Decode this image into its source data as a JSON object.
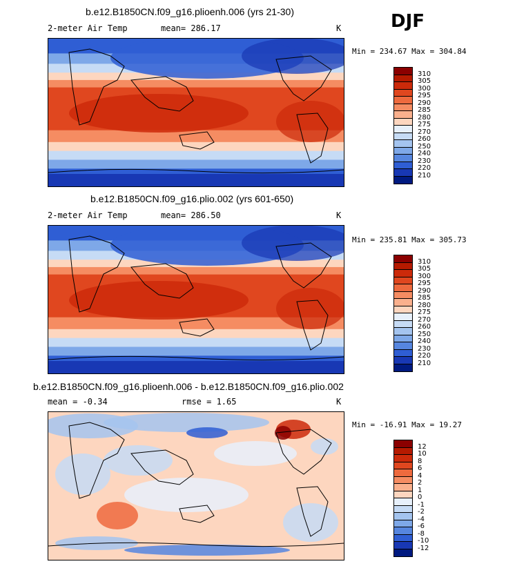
{
  "season": "DJF",
  "panels": [
    {
      "title": "b.e12.B1850CN.f09_g16.plioenh.006 (yrs 21-30)",
      "left_label": "2-meter Air Temp",
      "center_label": "mean= 286.17",
      "units": "K",
      "stats": "Min = 234.67 Max = 304.84",
      "type": "absolute"
    },
    {
      "title": "b.e12.B1850CN.f09_g16.plio.002 (yrs 601-650)",
      "left_label": "2-meter Air Temp",
      "center_label": "mean= 286.50",
      "units": "K",
      "stats": "Min = 235.81 Max = 305.73",
      "type": "absolute"
    },
    {
      "title": "b.e12.B1850CN.f09_g16.plioenh.006 - b.e12.B1850CN.f09_g16.plio.002",
      "left_label": "mean = -0.34",
      "center_label": "rmse = 1.65",
      "units": "K",
      "stats": "Min = -16.91 Max = 19.27",
      "type": "difference"
    }
  ],
  "colorbar_abs": {
    "labels": [
      "310",
      "305",
      "300",
      "295",
      "290",
      "285",
      "280",
      "275",
      "270",
      "260",
      "250",
      "240",
      "230",
      "220",
      "210"
    ],
    "colors": [
      "#8b0000",
      "#b51a00",
      "#cc2a0a",
      "#e0471f",
      "#ee6a3e",
      "#f58c62",
      "#fab08d",
      "#fdd6bf",
      "#e7f0fb",
      "#c6dbf5",
      "#a4c4ef",
      "#7ea8e8",
      "#5686df",
      "#2f5ed4",
      "#1838b4",
      "#001a80"
    ]
  },
  "colorbar_diff": {
    "labels": [
      "12",
      "10",
      "8",
      "6",
      "4",
      "2",
      "1",
      "0",
      "-1",
      "-2",
      "-4",
      "-6",
      "-8",
      "-10",
      "-12"
    ],
    "colors": [
      "#8b0000",
      "#b51a00",
      "#cc2a0a",
      "#e0471f",
      "#ee6a3e",
      "#f58c62",
      "#fab08d",
      "#fdd6bf",
      "#e7f0fb",
      "#c6dbf5",
      "#a4c4ef",
      "#7ea8e8",
      "#5686df",
      "#2f5ed4",
      "#1838b4",
      "#001a80"
    ]
  }
}
